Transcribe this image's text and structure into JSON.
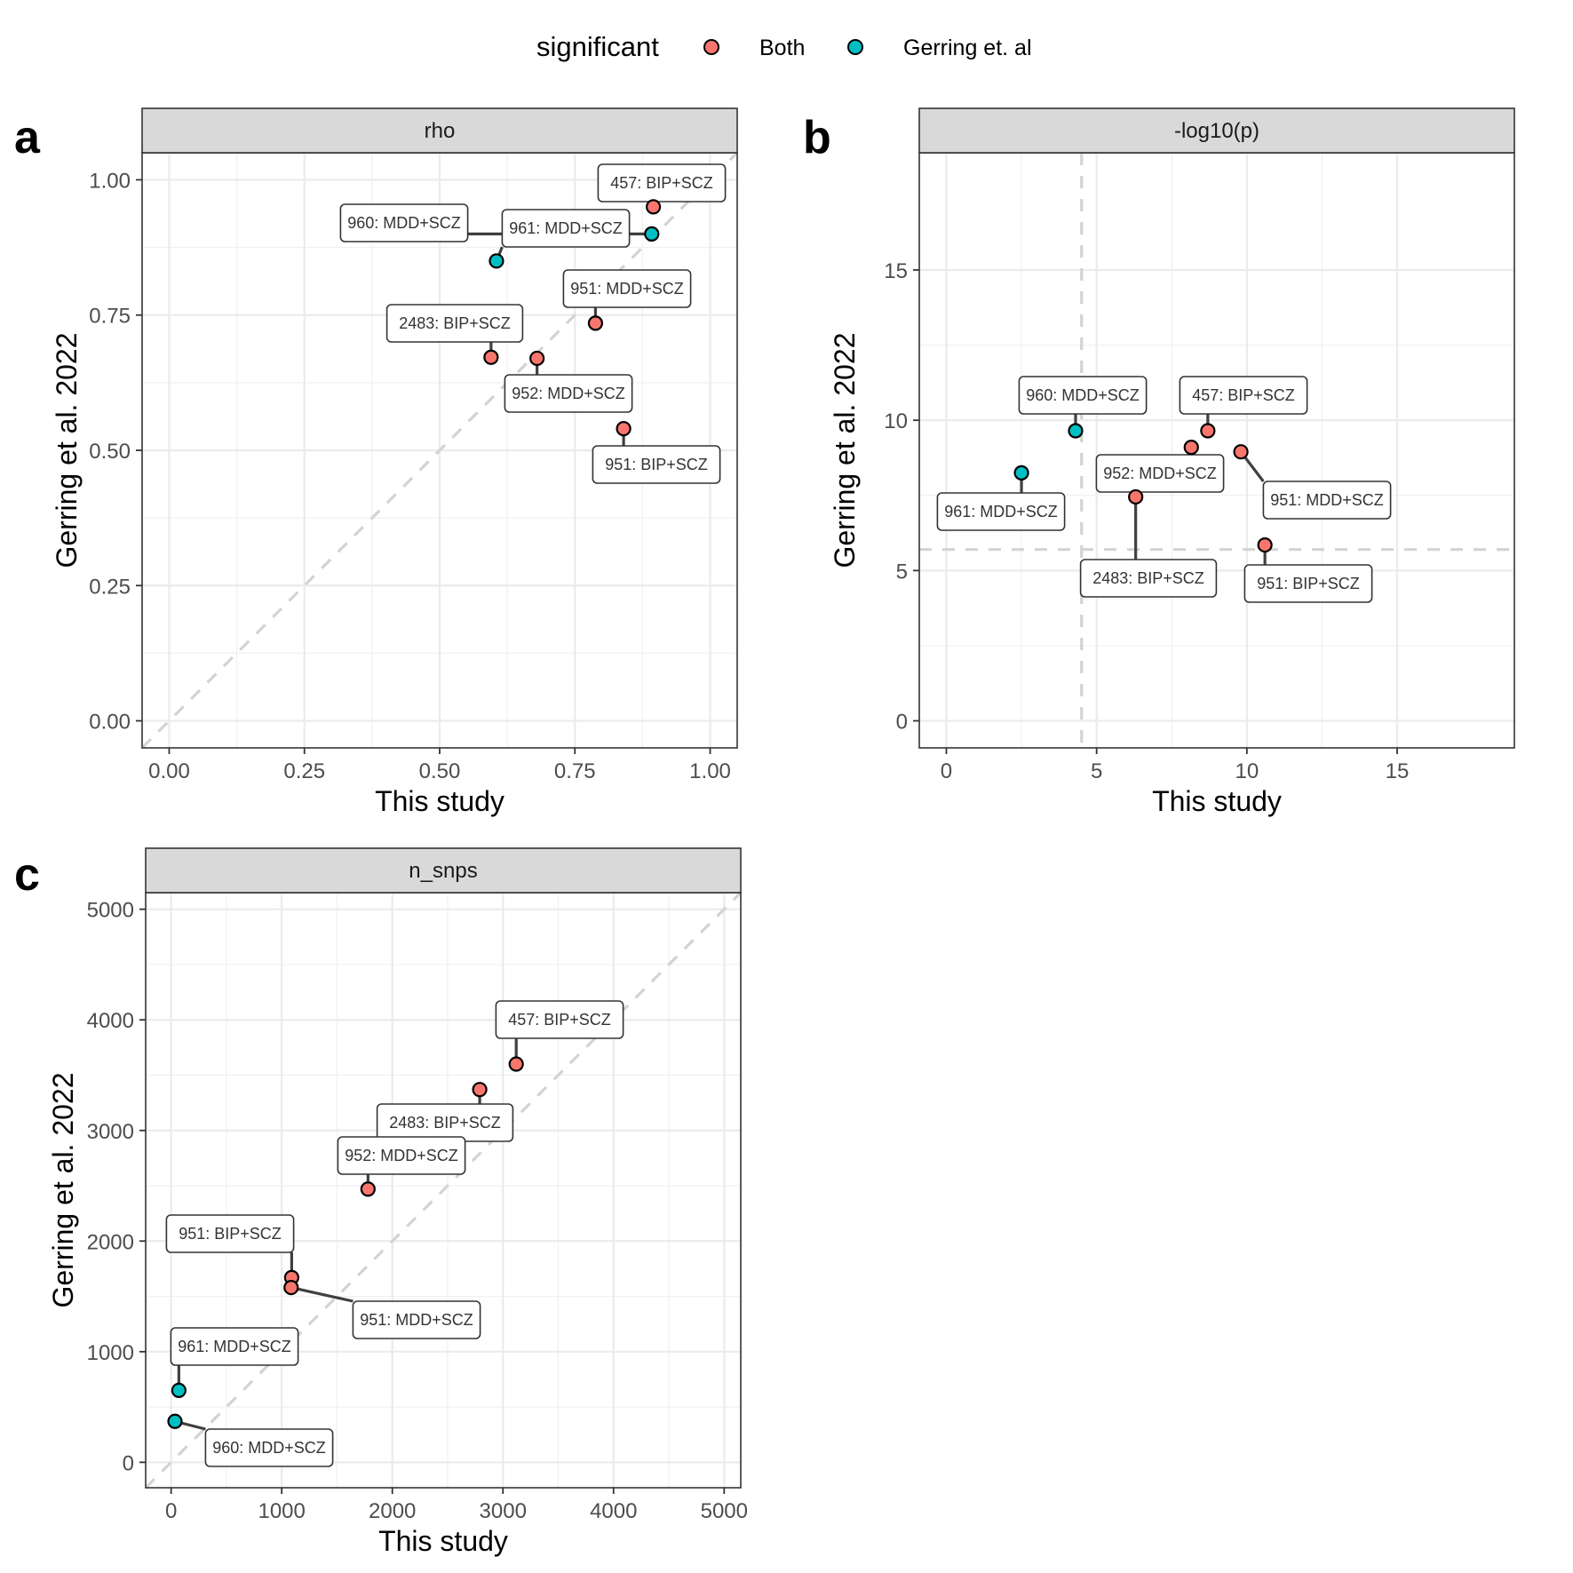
{
  "legend": {
    "title": "significant",
    "items": [
      {
        "label": "Both",
        "color": "#F8766D"
      },
      {
        "label": "Gerring et. al",
        "color": "#00BFC4"
      }
    ]
  },
  "chart_data": [
    {
      "type": "scatter",
      "panel": "a",
      "facet": "rho",
      "xlabel": "This study",
      "ylabel": "Gerring et al. 2022",
      "xlim": [
        -0.05,
        1.05
      ],
      "ylim": [
        -0.05,
        1.05
      ],
      "xticks": [
        0,
        0.25,
        0.5,
        0.75,
        1
      ],
      "xtick_labels": [
        "0.00",
        "0.25",
        "0.50",
        "0.75",
        "1.00"
      ],
      "yticks": [
        0,
        0.25,
        0.5,
        0.75,
        1
      ],
      "ytick_labels": [
        "0.00",
        "0.25",
        "0.50",
        "0.75",
        "1.00"
      ],
      "reference_line": "y = x (dashed)",
      "points": [
        {
          "label": "457: BIP+SCZ",
          "x": 0.895,
          "y": 0.95,
          "significant": "Both"
        },
        {
          "label": "960: MDD+SCZ",
          "x": 0.892,
          "y": 0.9,
          "significant": "Gerring et. al"
        },
        {
          "label": "961: MDD+SCZ",
          "x": 0.605,
          "y": 0.85,
          "significant": "Gerring et. al"
        },
        {
          "label": "951: MDD+SCZ",
          "x": 0.788,
          "y": 0.735,
          "significant": "Both"
        },
        {
          "label": "2483: BIP+SCZ",
          "x": 0.595,
          "y": 0.672,
          "significant": "Both"
        },
        {
          "label": "952: MDD+SCZ",
          "x": 0.68,
          "y": 0.67,
          "significant": "Both"
        },
        {
          "label": "951: BIP+SCZ",
          "x": 0.84,
          "y": 0.54,
          "significant": "Both"
        }
      ]
    },
    {
      "type": "scatter",
      "panel": "b",
      "facet": "-log10(p)",
      "xlabel": "This study",
      "ylabel": "Gerring et al. 2022",
      "xlim": [
        -0.9,
        18.9
      ],
      "ylim": [
        -0.9,
        18.9
      ],
      "xticks": [
        0,
        5,
        10,
        15
      ],
      "xtick_labels": [
        "0",
        "5",
        "10",
        "15"
      ],
      "yticks": [
        0,
        5,
        10,
        15
      ],
      "ytick_labels": [
        "0",
        "5",
        "10",
        "15"
      ],
      "threshold_x": 4.5,
      "threshold_y": 5.7,
      "points": [
        {
          "label": "960: MDD+SCZ",
          "x": 4.3,
          "y": 9.65,
          "significant": "Gerring et. al"
        },
        {
          "label": "961: MDD+SCZ",
          "x": 2.5,
          "y": 8.25,
          "significant": "Gerring et. al"
        },
        {
          "label": "457: BIP+SCZ",
          "x": 8.7,
          "y": 9.65,
          "significant": "Both"
        },
        {
          "label": "952: MDD+SCZ",
          "x": 8.15,
          "y": 9.1,
          "significant": "Both"
        },
        {
          "label": "951: MDD+SCZ",
          "x": 9.8,
          "y": 8.95,
          "significant": "Both"
        },
        {
          "label": "2483: BIP+SCZ",
          "x": 6.3,
          "y": 7.45,
          "significant": "Both"
        },
        {
          "label": "951: BIP+SCZ",
          "x": 10.6,
          "y": 5.85,
          "significant": "Both"
        }
      ]
    },
    {
      "type": "scatter",
      "panel": "c",
      "facet": "n_snps",
      "xlabel": "This study",
      "ylabel": "Gerring et al. 2022",
      "xlim": [
        -230,
        5150
      ],
      "ylim": [
        -230,
        5150
      ],
      "xticks": [
        0,
        1000,
        2000,
        3000,
        4000,
        5000
      ],
      "xtick_labels": [
        "0",
        "1000",
        "2000",
        "3000",
        "4000",
        "5000"
      ],
      "yticks": [
        0,
        1000,
        2000,
        3000,
        4000,
        5000
      ],
      "ytick_labels": [
        "0",
        "1000",
        "2000",
        "3000",
        "4000",
        "5000"
      ],
      "reference_line": "y = x (dashed)",
      "points": [
        {
          "label": "457: BIP+SCZ",
          "x": 3120,
          "y": 3600,
          "significant": "Both"
        },
        {
          "label": "2483: BIP+SCZ",
          "x": 2790,
          "y": 3370,
          "significant": "Both"
        },
        {
          "label": "952: MDD+SCZ",
          "x": 1780,
          "y": 2470,
          "significant": "Both"
        },
        {
          "label": "951: BIP+SCZ",
          "x": 1090,
          "y": 1670,
          "significant": "Both"
        },
        {
          "label": "951: MDD+SCZ",
          "x": 1085,
          "y": 1580,
          "significant": "Both"
        },
        {
          "label": "961: MDD+SCZ",
          "x": 70,
          "y": 650,
          "significant": "Gerring et. al"
        },
        {
          "label": "960: MDD+SCZ",
          "x": 35,
          "y": 370,
          "significant": "Gerring et. al"
        }
      ]
    }
  ]
}
